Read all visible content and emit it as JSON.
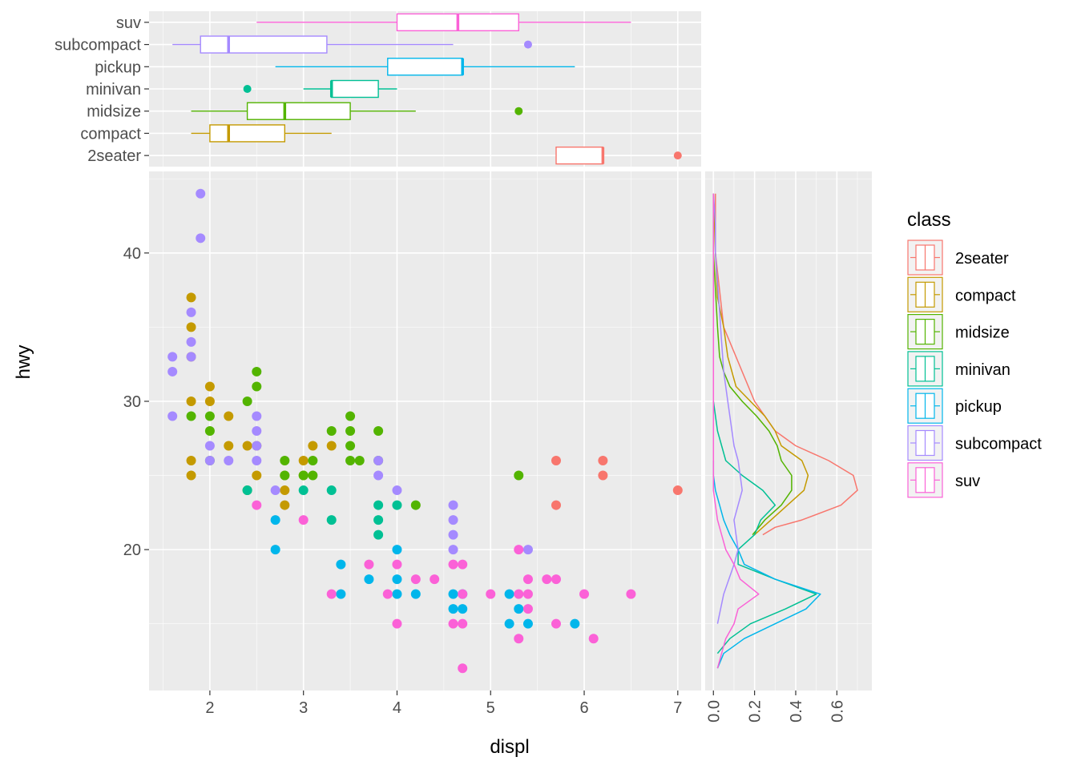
{
  "chart_data": [
    {
      "type": "scatter",
      "xlabel": "displ",
      "ylabel": "hwy",
      "xlim": [
        1.35,
        7.25
      ],
      "ylim": [
        10.5,
        45.5
      ],
      "x_ticks": [
        2,
        3,
        4,
        5,
        6,
        7
      ],
      "y_ticks": [
        20,
        30,
        40
      ],
      "grid": true,
      "series": [
        {
          "name": "2seater",
          "color": "#F8766D",
          "x": [
            5.7,
            5.7,
            6.2,
            6.2,
            7.0
          ],
          "y": [
            26,
            23,
            26,
            25,
            24
          ]
        },
        {
          "name": "compact",
          "color": "#C49A00",
          "x": [
            1.8,
            1.8,
            1.8,
            1.8,
            1.8,
            1.8,
            2.0,
            2.0,
            2.2,
            2.2,
            2.4,
            2.5,
            2.5,
            2.8,
            2.8,
            2.8,
            3.0,
            3.0,
            3.1,
            3.3
          ],
          "y": [
            37,
            35,
            33,
            30,
            26,
            25,
            31,
            30,
            29,
            27,
            27,
            27,
            25,
            25,
            24,
            23,
            26,
            25,
            27,
            27
          ]
        },
        {
          "name": "midsize",
          "color": "#53B400",
          "x": [
            1.8,
            2.0,
            2.0,
            2.0,
            2.4,
            2.4,
            2.5,
            2.5,
            2.8,
            2.8,
            3.0,
            3.1,
            3.1,
            3.3,
            3.5,
            3.5,
            3.5,
            3.5,
            3.6,
            3.8,
            3.8,
            4.2,
            5.3
          ],
          "y": [
            29,
            29,
            28,
            26,
            30,
            24,
            32,
            31,
            26,
            25,
            25,
            26,
            25,
            28,
            29,
            28,
            27,
            26,
            26,
            28,
            26,
            23,
            25
          ]
        },
        {
          "name": "minivan",
          "color": "#00C094",
          "x": [
            2.4,
            3.0,
            3.3,
            3.3,
            3.8,
            3.8,
            3.8,
            4.0
          ],
          "y": [
            24,
            24,
            24,
            22,
            23,
            22,
            21,
            23
          ]
        },
        {
          "name": "pickup",
          "color": "#00B6EB",
          "x": [
            2.7,
            2.7,
            3.4,
            3.4,
            3.7,
            4.0,
            4.0,
            4.0,
            4.2,
            4.6,
            4.6,
            4.7,
            4.7,
            5.2,
            5.2,
            5.3,
            5.4,
            5.9
          ],
          "y": [
            22,
            20,
            19,
            17,
            18,
            20,
            18,
            17,
            17,
            17,
            16,
            17,
            16,
            17,
            15,
            16,
            15,
            15
          ]
        },
        {
          "name": "subcompact",
          "color": "#A58AFF",
          "x": [
            1.6,
            1.6,
            1.6,
            1.8,
            1.8,
            1.8,
            1.9,
            1.9,
            2.0,
            2.0,
            2.2,
            2.5,
            2.5,
            2.5,
            2.5,
            2.7,
            3.8,
            3.8,
            4.0,
            4.6,
            4.6,
            4.6,
            4.6,
            5.4
          ],
          "y": [
            33,
            32,
            29,
            36,
            34,
            33,
            44,
            41,
            27,
            26,
            26,
            29,
            28,
            27,
            26,
            24,
            26,
            25,
            24,
            23,
            22,
            21,
            20,
            20
          ]
        },
        {
          "name": "suv",
          "color": "#FB61D7",
          "x": [
            2.5,
            3.0,
            3.3,
            3.7,
            3.9,
            4.0,
            4.0,
            4.2,
            4.4,
            4.6,
            4.6,
            4.7,
            4.7,
            4.7,
            4.7,
            5.0,
            5.3,
            5.3,
            5.3,
            5.4,
            5.4,
            5.4,
            5.6,
            5.7,
            5.7,
            6.0,
            6.1,
            6.5
          ],
          "y": [
            23,
            22,
            17,
            19,
            17,
            19,
            15,
            18,
            18,
            19,
            15,
            19,
            17,
            15,
            12,
            17,
            20,
            17,
            14,
            18,
            17,
            16,
            18,
            18,
            15,
            17,
            14,
            17
          ]
        }
      ]
    },
    {
      "type": "box",
      "orientation": "horizontal",
      "categories": [
        "2seater",
        "compact",
        "midsize",
        "minivan",
        "pickup",
        "subcompact",
        "suv"
      ],
      "colors": [
        "#F8766D",
        "#C49A00",
        "#53B400",
        "#00C094",
        "#00B6EB",
        "#A58AFF",
        "#FB61D7"
      ],
      "xlim": [
        1.35,
        7.25
      ],
      "boxes": [
        {
          "category": "2seater",
          "whisker_low": 5.7,
          "q1": 5.7,
          "median": 6.2,
          "q3": 6.2,
          "whisker_high": 6.2,
          "outliers": [
            7.0
          ]
        },
        {
          "category": "compact",
          "whisker_low": 1.8,
          "q1": 2.0,
          "median": 2.2,
          "q3": 2.8,
          "whisker_high": 3.3,
          "outliers": []
        },
        {
          "category": "midsize",
          "whisker_low": 1.8,
          "q1": 2.4,
          "median": 2.8,
          "q3": 3.5,
          "whisker_high": 4.2,
          "outliers": [
            5.3
          ]
        },
        {
          "category": "minivan",
          "whisker_low": 3.0,
          "q1": 3.3,
          "median": 3.3,
          "q3": 3.8,
          "whisker_high": 4.0,
          "outliers": [
            2.4
          ]
        },
        {
          "category": "pickup",
          "whisker_low": 2.7,
          "q1": 3.9,
          "median": 4.7,
          "q3": 4.7,
          "whisker_high": 5.9,
          "outliers": []
        },
        {
          "category": "subcompact",
          "whisker_low": 1.6,
          "q1": 1.9,
          "median": 2.2,
          "q3": 3.25,
          "whisker_high": 4.6,
          "outliers": [
            5.4
          ]
        },
        {
          "category": "suv",
          "whisker_low": 2.5,
          "q1": 4.0,
          "median": 4.65,
          "q3": 5.3,
          "whisker_high": 6.5,
          "outliers": []
        }
      ]
    },
    {
      "type": "line",
      "orientation": "vertical-density",
      "xlim": [
        -0.04,
        0.77
      ],
      "x_ticks": [
        0.0,
        0.2,
        0.4,
        0.6
      ],
      "x_tick_labels": [
        "0.0",
        "0.2",
        "0.4",
        "0.6"
      ],
      "ylim": [
        10.5,
        45.5
      ],
      "series": [
        {
          "name": "2seater",
          "color": "#F8766D",
          "hwy": [
            21.0,
            21.5,
            22.0,
            23.0,
            24.0,
            25.0,
            26.0,
            27.0,
            28.0,
            30.0,
            35.0,
            40.0,
            44.0
          ],
          "density": [
            0.24,
            0.3,
            0.43,
            0.62,
            0.7,
            0.68,
            0.56,
            0.4,
            0.3,
            0.2,
            0.05,
            0.01,
            0.01
          ]
        },
        {
          "name": "compact",
          "color": "#C49A00",
          "hwy": [
            21.0,
            22.0,
            23.0,
            24.0,
            25.0,
            26.0,
            27.0,
            28.0,
            29.0,
            30.0,
            31.0,
            33.0,
            35.0,
            37.0,
            40.0,
            44.0
          ],
          "density": [
            0.2,
            0.28,
            0.36,
            0.44,
            0.46,
            0.43,
            0.33,
            0.3,
            0.25,
            0.18,
            0.11,
            0.07,
            0.05,
            0.02,
            0.01,
            0.0
          ]
        },
        {
          "name": "midsize",
          "color": "#53B400",
          "hwy": [
            21.0,
            22.0,
            23.0,
            24.0,
            25.0,
            26.0,
            27.0,
            28.0,
            29.0,
            30.0,
            31.0,
            32.0,
            33.0,
            35.0,
            40.0,
            44.0
          ],
          "density": [
            0.19,
            0.25,
            0.33,
            0.38,
            0.38,
            0.33,
            0.31,
            0.27,
            0.21,
            0.14,
            0.08,
            0.05,
            0.03,
            0.02,
            0.0,
            0.0
          ]
        },
        {
          "name": "minivan",
          "color": "#00C094",
          "hwy": [
            13.0,
            14.0,
            15.0,
            16.0,
            17.0,
            18.0,
            19.0,
            20.0,
            21.0,
            22.0,
            23.0,
            24.0,
            25.0,
            26.0,
            28.0,
            30.0
          ],
          "density": [
            0.02,
            0.08,
            0.18,
            0.35,
            0.5,
            0.3,
            0.12,
            0.12,
            0.2,
            0.23,
            0.3,
            0.24,
            0.14,
            0.06,
            0.02,
            0.0
          ]
        },
        {
          "name": "pickup",
          "color": "#00B6EB",
          "hwy": [
            12.0,
            13.0,
            14.0,
            15.0,
            16.0,
            17.0,
            18.0,
            19.0,
            20.0,
            21.0,
            22.0,
            23.0,
            24.0,
            25.0,
            26.0
          ],
          "density": [
            0.02,
            0.05,
            0.15,
            0.3,
            0.45,
            0.52,
            0.3,
            0.15,
            0.12,
            0.08,
            0.05,
            0.03,
            0.01,
            0.0,
            0.0
          ]
        },
        {
          "name": "subcompact",
          "color": "#A58AFF",
          "hwy": [
            15.0,
            17.0,
            19.0,
            20.0,
            21.0,
            22.0,
            23.0,
            24.0,
            25.0,
            26.0,
            27.0,
            28.0,
            29.0,
            30.0,
            32.0,
            34.0,
            36.0,
            38.0,
            40.0,
            42.0,
            44.0
          ],
          "density": [
            0.02,
            0.05,
            0.1,
            0.12,
            0.11,
            0.1,
            0.12,
            0.14,
            0.13,
            0.12,
            0.1,
            0.09,
            0.08,
            0.07,
            0.05,
            0.04,
            0.03,
            0.02,
            0.01,
            0.01,
            0.0
          ]
        },
        {
          "name": "suv",
          "color": "#FB61D7",
          "hwy": [
            12.0,
            13.0,
            14.0,
            15.0,
            16.0,
            17.0,
            18.0,
            19.0,
            20.0,
            21.0,
            22.0,
            23.0,
            24.0,
            26.0,
            28.0,
            30.0,
            35.0,
            40.0,
            44.0
          ],
          "density": [
            0.02,
            0.04,
            0.06,
            0.1,
            0.12,
            0.22,
            0.13,
            0.1,
            0.06,
            0.04,
            0.02,
            0.01,
            0.0,
            0.0,
            0.0,
            0.0,
            0.0,
            0.0,
            0.0
          ]
        }
      ]
    }
  ],
  "legend": {
    "title": "class",
    "items": [
      {
        "label": "2seater",
        "color": "#F8766D"
      },
      {
        "label": "compact",
        "color": "#C49A00"
      },
      {
        "label": "midsize",
        "color": "#53B400"
      },
      {
        "label": "minivan",
        "color": "#00C094"
      },
      {
        "label": "pickup",
        "color": "#00B6EB"
      },
      {
        "label": "subcompact",
        "color": "#A58AFF"
      },
      {
        "label": "suv",
        "color": "#FB61D7"
      }
    ]
  }
}
